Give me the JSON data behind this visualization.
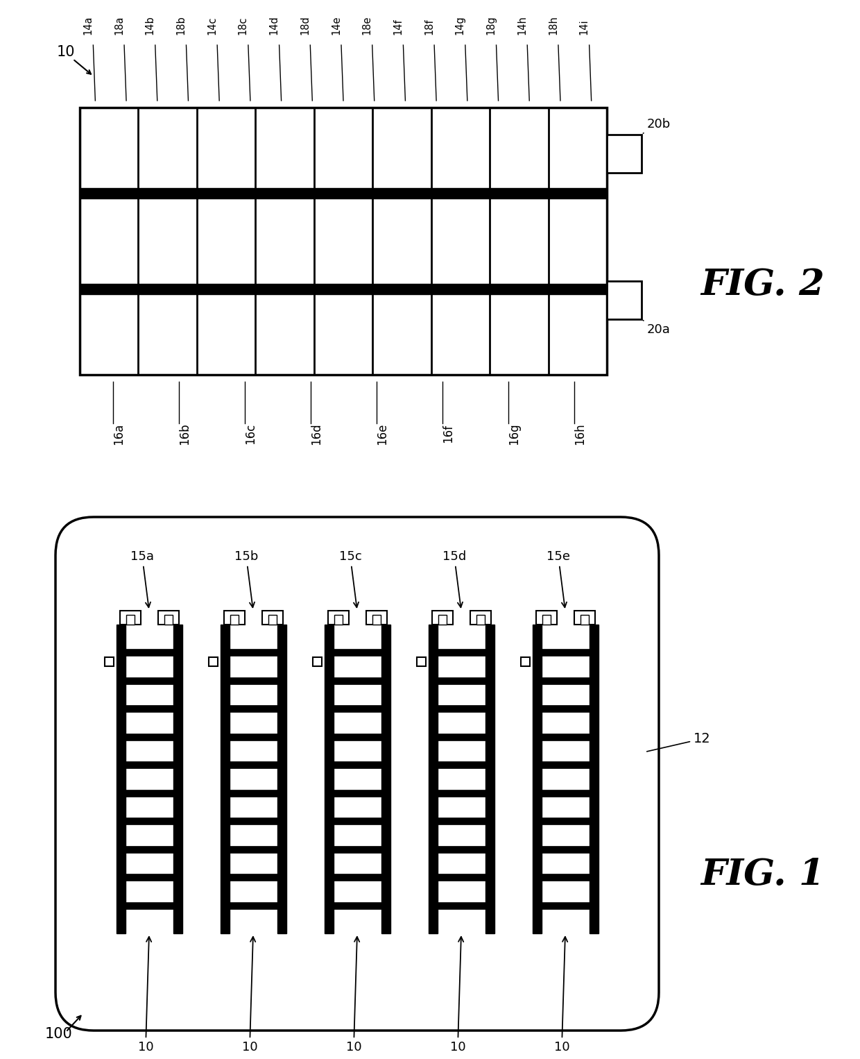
{
  "bg_color": "#ffffff",
  "fig2": {
    "title": "FIG. 2",
    "bottom_labels": [
      "16a",
      "16b",
      "16c",
      "16d",
      "16e",
      "16f",
      "16g",
      "16h"
    ],
    "top_labels": [
      "14a",
      "18a",
      "14b",
      "18b",
      "14c",
      "18c",
      "14d",
      "18d",
      "14e",
      "18e",
      "14f",
      "18f",
      "14g",
      "18g",
      "14h",
      "18h",
      "14i"
    ],
    "right_labels": [
      "20b",
      "20a"
    ],
    "label_10": "10"
  },
  "fig1": {
    "title": "FIG. 1",
    "label_100": "100",
    "label_12": "12",
    "module_labels": [
      "15a",
      "15b",
      "15c",
      "15d",
      "15e"
    ],
    "bottom_label": "10"
  }
}
